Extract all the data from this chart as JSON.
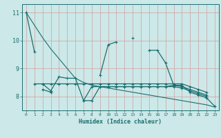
{
  "bg_color": "#cce8e8",
  "grid_color": "#b0d4d4",
  "line_color": "#1a6e6e",
  "xlabel": "Humidex (Indice chaleur)",
  "xlim": [
    -0.5,
    23.5
  ],
  "ylim": [
    7.5,
    11.3
  ],
  "yticks": [
    8,
    9,
    10,
    11
  ],
  "xticks": [
    0,
    1,
    2,
    3,
    4,
    5,
    6,
    7,
    8,
    9,
    10,
    11,
    12,
    13,
    14,
    15,
    16,
    17,
    18,
    19,
    20,
    21,
    22,
    23
  ],
  "s_main": [
    11.0,
    9.6,
    null,
    null,
    null,
    null,
    null,
    null,
    null,
    8.75,
    9.85,
    9.95,
    null,
    10.1,
    null,
    9.65,
    9.65,
    9.2,
    8.4,
    8.4,
    8.15,
    8.05,
    7.95,
    7.65
  ],
  "s_flat1": [
    null,
    null,
    null,
    null,
    null,
    null,
    null,
    null,
    null,
    null,
    null,
    null,
    null,
    null,
    null,
    null,
    null,
    null,
    null,
    null,
    null,
    null,
    null,
    null
  ],
  "s_upper_flat": [
    null,
    8.45,
    8.45,
    8.45,
    8.45,
    8.45,
    8.45,
    8.45,
    8.45,
    8.45,
    8.45,
    8.45,
    8.45,
    8.45,
    8.45,
    8.45,
    8.45,
    8.45,
    8.45,
    8.45,
    8.35,
    8.25,
    8.15,
    null
  ],
  "s_zigzag": [
    null,
    null,
    8.45,
    8.2,
    8.7,
    8.65,
    8.65,
    7.85,
    7.85,
    8.35,
    8.35,
    8.35,
    8.35,
    8.35,
    8.35,
    8.35,
    8.35,
    8.35,
    8.4,
    8.35,
    8.25,
    8.15,
    8.05,
    null
  ],
  "s_lower_flat": [
    null,
    null,
    8.25,
    8.15,
    null,
    null,
    null,
    7.85,
    8.35,
    8.35,
    8.35,
    8.35,
    8.35,
    8.35,
    8.35,
    8.35,
    8.35,
    8.35,
    8.35,
    8.3,
    8.2,
    8.1,
    8.0,
    null
  ],
  "s_decline": [
    11.0,
    10.55,
    10.1,
    9.7,
    9.35,
    9.0,
    8.65,
    8.5,
    8.4,
    8.35,
    8.3,
    8.25,
    8.2,
    8.15,
    8.1,
    8.05,
    8.0,
    7.95,
    7.9,
    7.85,
    7.8,
    7.75,
    7.7,
    7.62
  ]
}
